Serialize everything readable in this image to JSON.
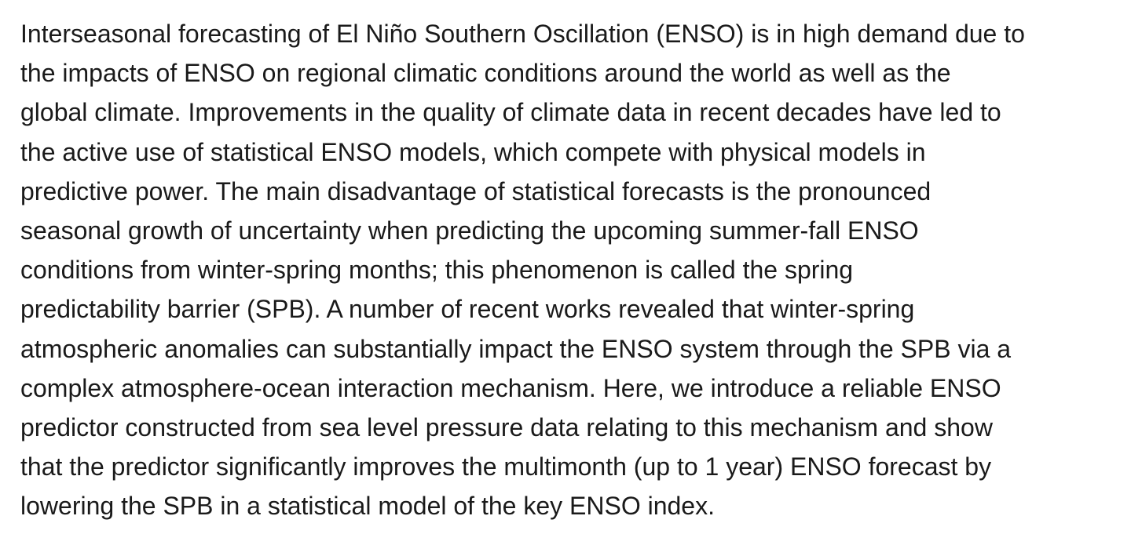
{
  "paragraph": {
    "lines": [
      "Interseasonal forecasting of El Niño Southern Oscillation (ENSO) is in high demand due to",
      "the impacts of ENSO on regional climatic conditions around the world as well as the",
      "global climate. Improvements in the quality of climate data in recent decades have led to",
      "the active use of statistical ENSO models, which compete with physical models in",
      "predictive power. The main disadvantage of statistical forecasts is the pronounced",
      "seasonal growth of uncertainty when predicting the upcoming summer-fall ENSO",
      "conditions from winter-spring months; this phenomenon is called the spring",
      "predictability barrier (SPB). A number of recent works revealed that winter-spring",
      "atmospheric anomalies can substantially impact the ENSO system through the SPB via a",
      "complex atmosphere-ocean interaction mechanism. Here, we introduce a reliable ENSO",
      "predictor constructed from sea level pressure data relating to this mechanism and show",
      "that the predictor significantly improves the multimonth (up to 1 year) ENSO forecast by",
      "lowering the SPB in a statistical model of the key ENSO index."
    ]
  }
}
